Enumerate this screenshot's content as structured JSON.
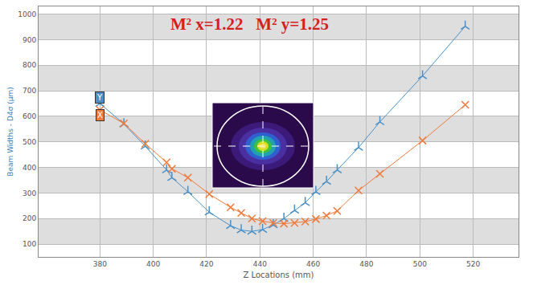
{
  "chart_data": {
    "type": "line",
    "title": "M² x=1.22   M² y=1.25",
    "x_label": "Z Locations (mm)",
    "y_label": "Beam Widths - D4σ (µm)",
    "xlim": [
      357,
      537
    ],
    "xticks": [
      380,
      400,
      420,
      440,
      460,
      480,
      500,
      520
    ],
    "ylim": [
      50,
      1030
    ],
    "yticks": [
      100,
      200,
      300,
      400,
      500,
      600,
      700,
      800,
      900,
      1000
    ],
    "grid": true,
    "series": [
      {
        "name": "Y",
        "color": "#4a90c8",
        "marker": "y",
        "x": [
          380,
          389,
          397,
          405,
          407,
          413,
          421,
          429,
          433,
          437,
          441,
          445,
          449,
          453,
          457,
          461,
          465,
          469,
          477,
          485,
          501,
          517
        ],
        "values": [
          650,
          570,
          483,
          390,
          360,
          305,
          225,
          172,
          155,
          150,
          157,
          175,
          200,
          232,
          262,
          305,
          345,
          390,
          478,
          578,
          758,
          952
        ]
      },
      {
        "name": "X",
        "color": "#f07a3a",
        "marker": "x",
        "x": [
          380,
          389,
          397,
          405,
          407,
          413,
          421,
          429,
          433,
          437,
          441,
          445,
          449,
          453,
          457,
          461,
          465,
          469,
          477,
          485,
          501,
          517
        ],
        "values": [
          625,
          572,
          493,
          420,
          395,
          360,
          296,
          244,
          222,
          200,
          190,
          183,
          180,
          183,
          188,
          198,
          212,
          230,
          310,
          375,
          505,
          645
        ]
      }
    ]
  }
}
